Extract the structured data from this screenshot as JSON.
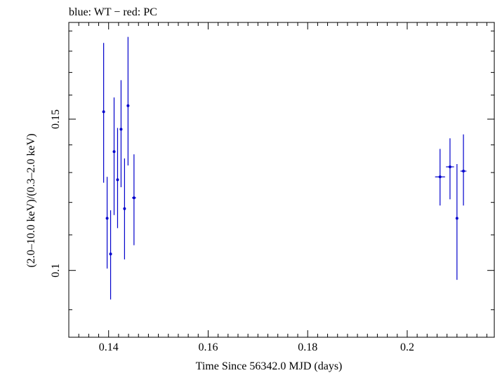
{
  "chart_data": {
    "type": "scatter",
    "title": "blue: WT − red: PC",
    "xlabel": "Time Since 56342.0 MJD (days)",
    "ylabel": "(2.0–10.0 keV)/(0.3–2.0 keV)",
    "xlim": [
      0.132,
      0.2175
    ],
    "ylim": [
      0.0836,
      0.1944
    ],
    "yscale": "log",
    "x_ticks": [
      0.14,
      0.16,
      0.18,
      0.2
    ],
    "x_tick_labels": [
      "0.14",
      "0.16",
      "0.18",
      "0.2"
    ],
    "y_ticks": [
      0.1,
      0.15
    ],
    "y_tick_labels": [
      "0.1",
      "0.15"
    ],
    "grid": false,
    "series": [
      {
        "color": "#0000cc",
        "points": [
          {
            "x": 0.139,
            "xerr": 0.0002,
            "y": 0.153,
            "ylo": 0.1265,
            "yhi": 0.184
          },
          {
            "x": 0.1397,
            "xerr": 0.0002,
            "y": 0.115,
            "ylo": 0.1005,
            "yhi": 0.1285
          },
          {
            "x": 0.1404,
            "xerr": 0.0002,
            "y": 0.1045,
            "ylo": 0.0925,
            "yhi": 0.1175
          },
          {
            "x": 0.1411,
            "xerr": 0.0002,
            "y": 0.1375,
            "ylo": 0.116,
            "yhi": 0.159
          },
          {
            "x": 0.1418,
            "xerr": 0.0002,
            "y": 0.1275,
            "ylo": 0.112,
            "yhi": 0.1465
          },
          {
            "x": 0.1425,
            "xerr": 0.0002,
            "y": 0.146,
            "ylo": 0.125,
            "yhi": 0.1665
          },
          {
            "x": 0.1432,
            "xerr": 0.0002,
            "y": 0.118,
            "ylo": 0.103,
            "yhi": 0.135
          },
          {
            "x": 0.1439,
            "xerr": 0.0002,
            "y": 0.1555,
            "ylo": 0.1325,
            "yhi": 0.187
          },
          {
            "x": 0.1451,
            "xerr": 0.0004,
            "y": 0.1215,
            "ylo": 0.107,
            "yhi": 0.1365
          },
          {
            "x": 0.2066,
            "xerr": 0.001,
            "y": 0.1285,
            "ylo": 0.119,
            "yhi": 0.1385
          },
          {
            "x": 0.2086,
            "xerr": 0.0008,
            "y": 0.132,
            "ylo": 0.121,
            "yhi": 0.1425
          },
          {
            "x": 0.21,
            "xerr": 0.0002,
            "y": 0.115,
            "ylo": 0.0975,
            "yhi": 0.133
          },
          {
            "x": 0.2113,
            "xerr": 0.0006,
            "y": 0.1305,
            "ylo": 0.119,
            "yhi": 0.144
          }
        ]
      }
    ]
  }
}
